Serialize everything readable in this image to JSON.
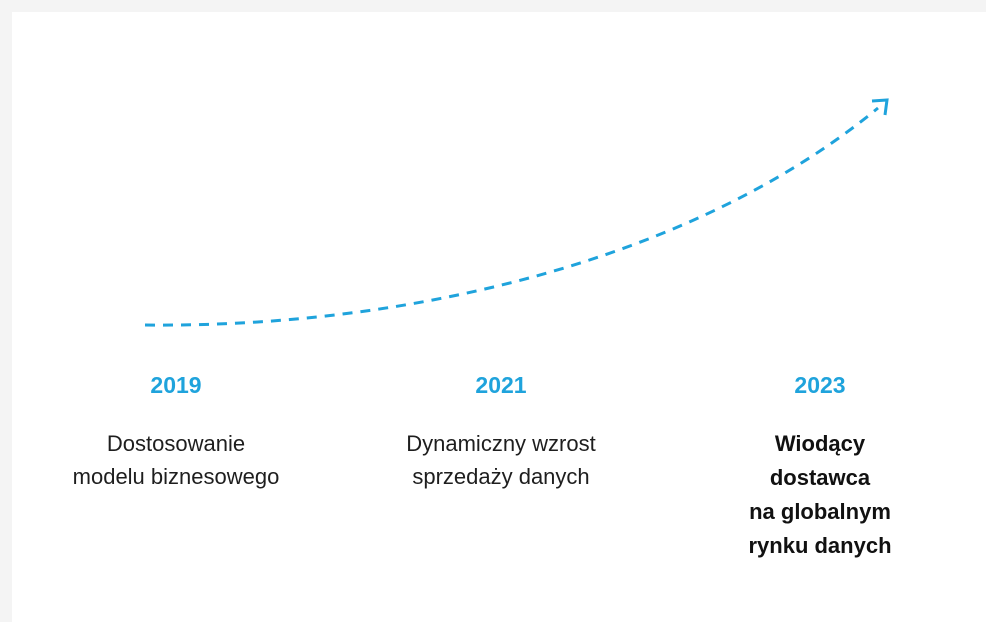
{
  "timeline": {
    "items": [
      {
        "year": "2019",
        "description": [
          "Dostosowanie",
          "modelu biznesowego"
        ]
      },
      {
        "year": "2021",
        "description": [
          "Dynamiczny wzrost",
          "sprzedaży danych"
        ]
      },
      {
        "year": "2023",
        "description": [
          "Wiodący",
          "dostawca",
          "na globalnym",
          "rynku danych"
        ]
      }
    ]
  }
}
